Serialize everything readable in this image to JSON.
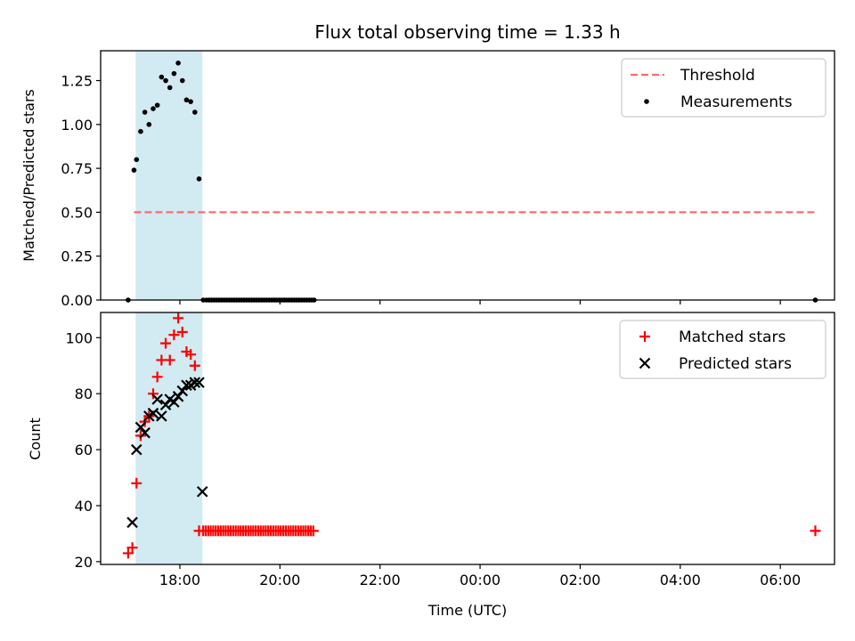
{
  "chart_data": [
    {
      "type": "scatter",
      "title": "Flux total observing time = 1.33 h",
      "ylabel": "Matched/Predicted stars",
      "xlabel": "",
      "ylim": [
        0,
        1.42
      ],
      "yticks": [
        "0.00",
        "0.25",
        "0.50",
        "0.75",
        "1.00",
        "1.25"
      ],
      "legend": {
        "position": "top-right",
        "entries": [
          "Threshold",
          "Measurements"
        ]
      },
      "highlight_span": {
        "from": "17:07",
        "to": "18:27",
        "color": "#add8e6"
      },
      "threshold": {
        "name": "Threshold",
        "y": 0.5,
        "from": "17:05",
        "to": "06:42",
        "color": "#ff6b6b"
      },
      "series": [
        {
          "name": "Measurements",
          "marker": "dot",
          "color": "#000000",
          "x": [
            "16:58",
            "17:05",
            "17:08",
            "17:13",
            "17:18",
            "17:23",
            "17:28",
            "17:33",
            "17:38",
            "17:43",
            "17:48",
            "17:53",
            "17:58",
            "18:03",
            "18:08",
            "18:13",
            "18:18",
            "18:23",
            "18:28",
            "18:32",
            "18:35",
            "18:38",
            "18:41",
            "18:44",
            "18:47",
            "18:50",
            "18:53",
            "18:56",
            "18:59",
            "19:02",
            "19:05",
            "19:08",
            "19:11",
            "19:14",
            "19:17",
            "19:20",
            "19:23",
            "19:26",
            "19:29",
            "19:32",
            "19:35",
            "19:38",
            "19:41",
            "19:44",
            "19:47",
            "19:50",
            "19:53",
            "19:56",
            "19:59",
            "20:02",
            "20:05",
            "20:08",
            "20:11",
            "20:14",
            "20:17",
            "20:20",
            "20:23",
            "20:26",
            "20:29",
            "20:32",
            "20:35",
            "20:38",
            "20:41",
            "06:42"
          ],
          "y": [
            0.0,
            0.74,
            0.8,
            0.96,
            1.07,
            1.0,
            1.09,
            1.11,
            1.27,
            1.25,
            1.21,
            1.29,
            1.35,
            1.25,
            1.14,
            1.13,
            1.07,
            0.69,
            0,
            0,
            0,
            0,
            0,
            0,
            0,
            0,
            0,
            0,
            0,
            0,
            0,
            0,
            0,
            0,
            0,
            0,
            0,
            0,
            0,
            0,
            0,
            0,
            0,
            0,
            0,
            0,
            0,
            0,
            0,
            0,
            0,
            0,
            0,
            0,
            0,
            0,
            0,
            0,
            0,
            0,
            0,
            0,
            0,
            0
          ]
        }
      ]
    },
    {
      "type": "scatter",
      "title": "",
      "ylabel": "Count",
      "xlabel": "Time (UTC)",
      "ylim": [
        19,
        109
      ],
      "yticks": [
        "20",
        "40",
        "60",
        "80",
        "100"
      ],
      "xticks": [
        "18:00",
        "20:00",
        "22:00",
        "00:00",
        "02:00",
        "04:00",
        "06:00"
      ],
      "legend": {
        "position": "top-right",
        "entries": [
          "Matched stars",
          "Predicted stars"
        ]
      },
      "highlight_span": {
        "from": "17:07",
        "to": "18:27",
        "color": "#add8e6"
      },
      "series": [
        {
          "name": "Matched stars",
          "marker": "plus",
          "color": "#ff0000",
          "x": [
            "16:58",
            "17:03",
            "17:08",
            "17:13",
            "17:18",
            "17:23",
            "17:28",
            "17:33",
            "17:38",
            "17:43",
            "17:48",
            "17:53",
            "17:58",
            "18:03",
            "18:08",
            "18:13",
            "18:18",
            "18:23",
            "18:28",
            "18:31",
            "18:34",
            "18:37",
            "18:40",
            "18:43",
            "18:46",
            "18:49",
            "18:52",
            "18:55",
            "18:58",
            "19:01",
            "19:04",
            "19:07",
            "19:10",
            "19:13",
            "19:16",
            "19:19",
            "19:22",
            "19:25",
            "19:28",
            "19:31",
            "19:34",
            "19:37",
            "19:40",
            "19:43",
            "19:46",
            "19:49",
            "19:52",
            "19:55",
            "19:58",
            "20:01",
            "20:04",
            "20:07",
            "20:10",
            "20:13",
            "20:16",
            "20:19",
            "20:22",
            "20:25",
            "20:28",
            "20:31",
            "20:34",
            "20:37",
            "20:40",
            "06:42"
          ],
          "y": [
            23,
            25,
            48,
            65,
            70,
            72,
            80,
            86,
            92,
            98,
            92,
            101,
            107,
            102,
            95,
            94,
            90,
            31,
            31,
            31,
            31,
            31,
            31,
            31,
            31,
            31,
            31,
            31,
            31,
            31,
            31,
            31,
            31,
            31,
            31,
            31,
            31,
            31,
            31,
            31,
            31,
            31,
            31,
            31,
            31,
            31,
            31,
            31,
            31,
            31,
            31,
            31,
            31,
            31,
            31,
            31,
            31,
            31,
            31,
            31,
            31,
            31,
            31,
            31
          ]
        },
        {
          "name": "Predicted stars",
          "marker": "x",
          "color": "#000000",
          "x": [
            "17:03",
            "17:08",
            "17:13",
            "17:18",
            "17:23",
            "17:28",
            "17:33",
            "17:38",
            "17:43",
            "17:48",
            "17:53",
            "17:58",
            "18:03",
            "18:08",
            "18:13",
            "18:18",
            "18:23",
            "18:27"
          ],
          "y": [
            34,
            60,
            68,
            66,
            72,
            73,
            78,
            72,
            76,
            78,
            77,
            79,
            81,
            83,
            83,
            84,
            84,
            45
          ]
        }
      ]
    }
  ]
}
